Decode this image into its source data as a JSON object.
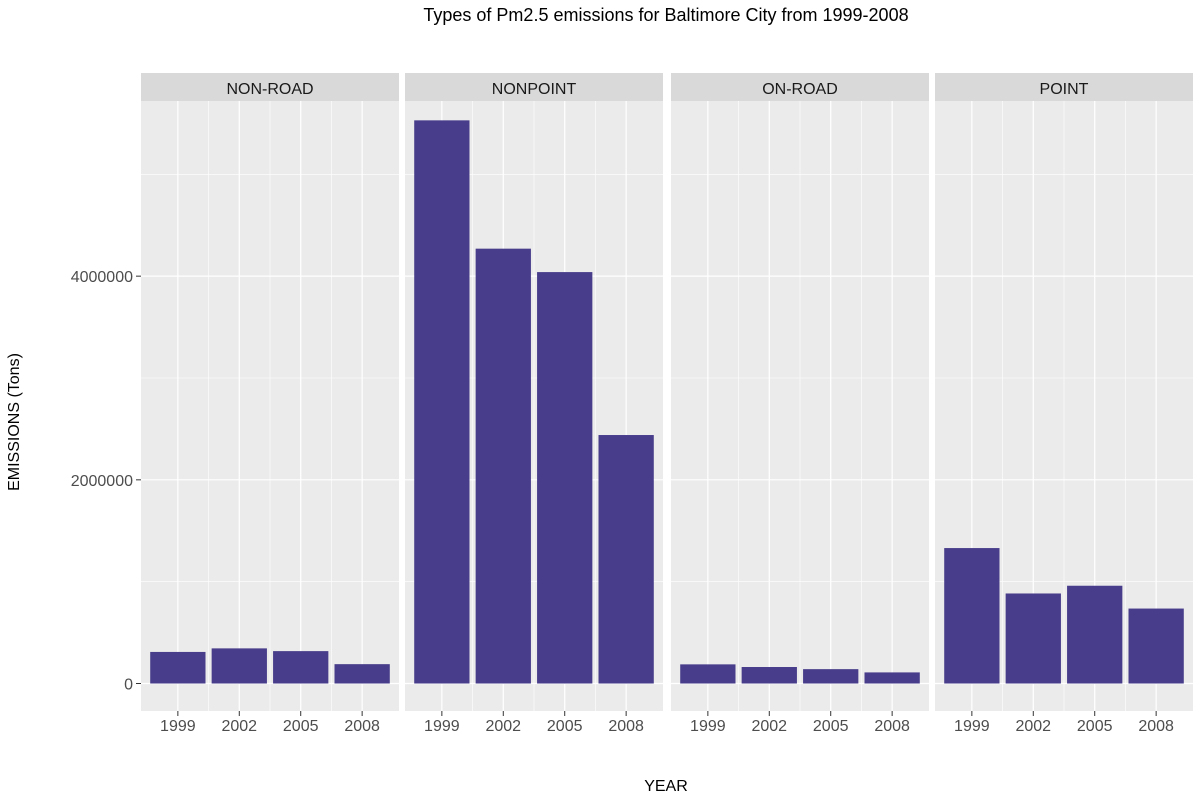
{
  "chart_data": {
    "type": "bar",
    "title": "Types of Pm2.5 emissions for Baltimore City from 1999-2008",
    "xlabel": "YEAR",
    "ylabel": "EMISSIONS (Tons)",
    "ylim": [
      -270000,
      5720000
    ],
    "yticks": [
      "0",
      "2000000",
      "4000000"
    ],
    "categories": [
      "1999",
      "2002",
      "2005",
      "2008"
    ],
    "grid": true,
    "bar_color": "#483D8B",
    "panel_background": "#EBEBEB",
    "strip_background": "#D9D9D9",
    "panels": [
      {
        "name": "NON-ROAD",
        "values": [
          310000,
          345000,
          318000,
          190000
        ]
      },
      {
        "name": "NONPOINT",
        "values": [
          5530000,
          4270000,
          4040000,
          2440000
        ]
      },
      {
        "name": "ON-ROAD",
        "values": [
          188000,
          162000,
          141000,
          109000
        ]
      },
      {
        "name": "POINT",
        "values": [
          1330000,
          884000,
          960000,
          736000
        ]
      }
    ]
  }
}
